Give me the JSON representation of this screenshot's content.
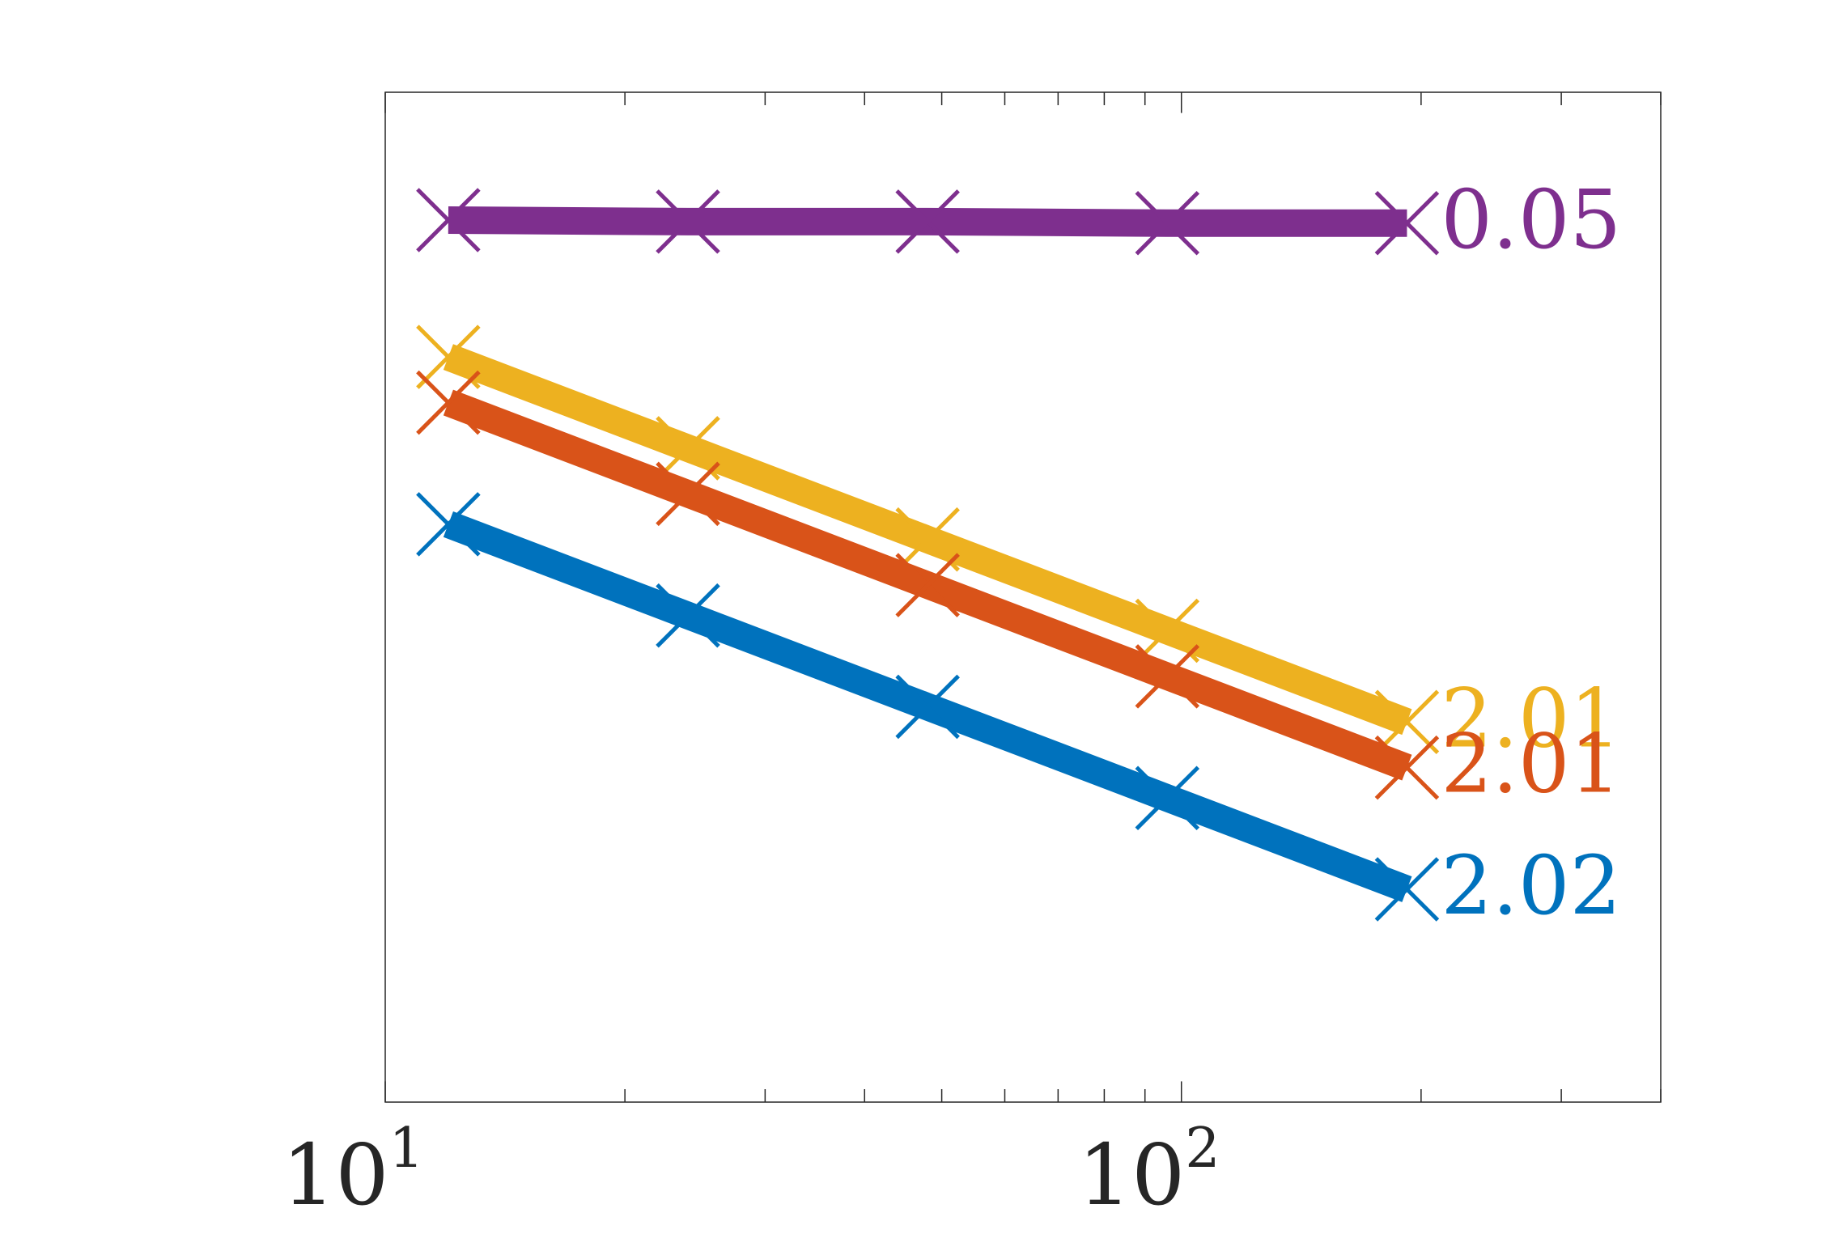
{
  "chart_data": {
    "type": "line",
    "title": "",
    "xlabel": "",
    "ylabel": "",
    "x_scale": "log",
    "xlim": [
      10,
      400
    ],
    "x": [
      12,
      24,
      48,
      96,
      192
    ],
    "x_ticks": [
      {
        "value": 10,
        "base": "10",
        "exp": "1"
      },
      {
        "value": 100,
        "base": "10",
        "exp": "2"
      }
    ],
    "y_ticks_shown": false,
    "grid": false,
    "legend": "none",
    "marker": "x",
    "series": [
      {
        "color": "#7E2F8E",
        "rate_label": "0.05",
        "log10_values": [
          -1.0,
          -1.01,
          -1.01,
          -1.02,
          -1.02
        ]
      },
      {
        "color": "#EDB120",
        "rate_label": "2.01",
        "log10_values": [
          -1.9,
          -2.5,
          -3.1,
          -3.7,
          -4.3
        ]
      },
      {
        "color": "#D95319",
        "rate_label": "2.01",
        "log10_values": [
          -2.2,
          -2.8,
          -3.4,
          -4.0,
          -4.6
        ]
      },
      {
        "color": "#0072BD",
        "rate_label": "2.02",
        "log10_values": [
          -3.0,
          -3.6,
          -4.2,
          -4.8,
          -5.4
        ]
      }
    ]
  }
}
